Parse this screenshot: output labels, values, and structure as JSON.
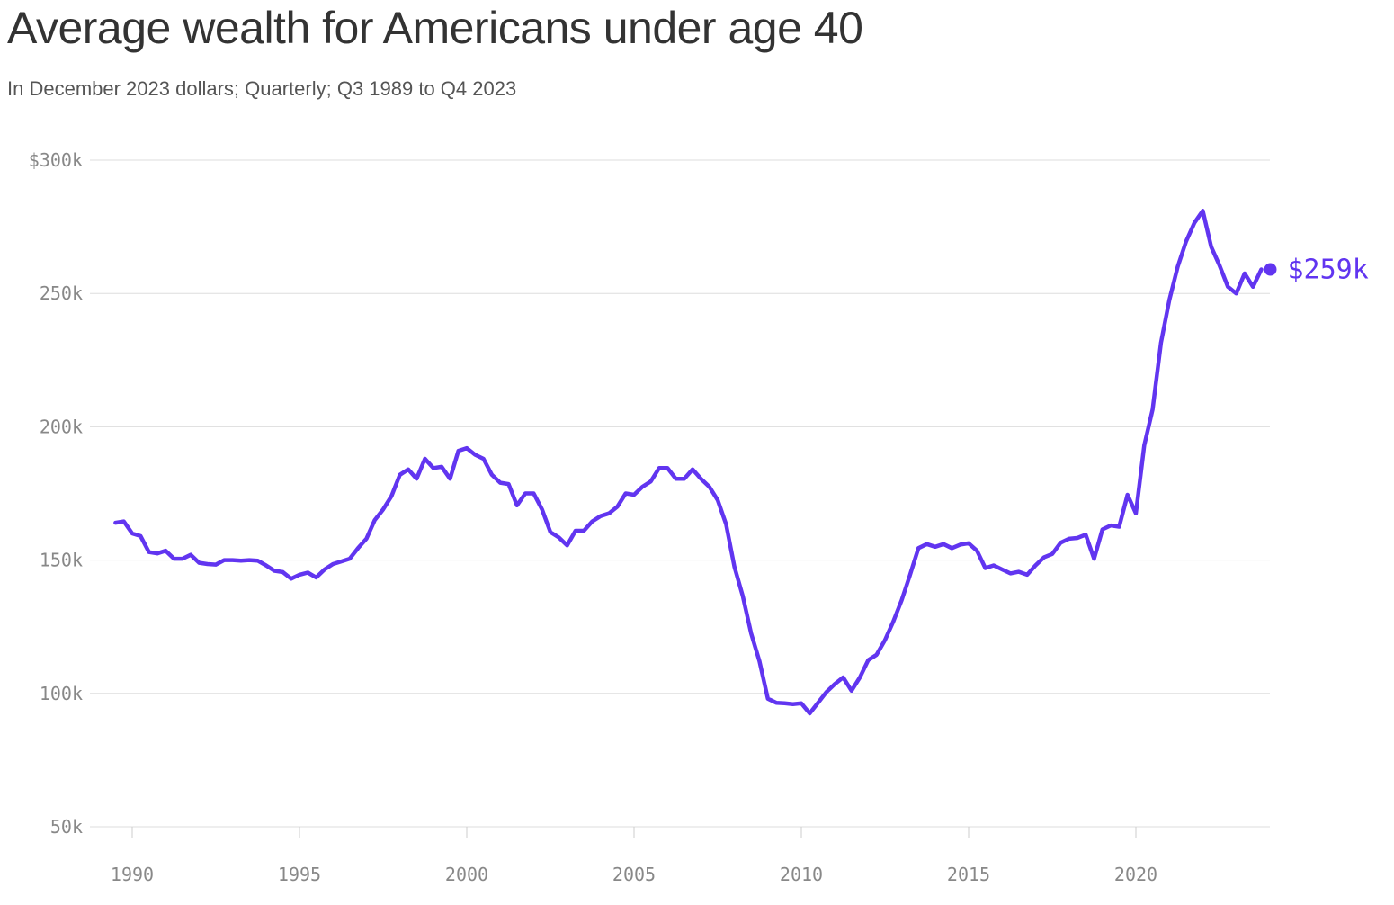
{
  "title": "Average wealth for Americans under age 40",
  "subtitle": "In December 2023 dollars; Quarterly; Q3 1989 to Q4 2023",
  "colors": {
    "line": "#6135f0",
    "grid": "#dddddd",
    "tick_text": "#888888"
  },
  "chart_data": {
    "type": "line",
    "title": "Average wealth for Americans under age 40",
    "subtitle": "In December 2023 dollars; Quarterly; Q3 1989 to Q4 2023",
    "xlabel": "",
    "ylabel": "",
    "x_ticks": [
      1990,
      1995,
      2000,
      2005,
      2010,
      2015,
      2020
    ],
    "y_ticks": [
      {
        "value": 50,
        "label": "50k"
      },
      {
        "value": 100,
        "label": "100k"
      },
      {
        "value": 150,
        "label": "150k"
      },
      {
        "value": 200,
        "label": "200k"
      },
      {
        "value": 250,
        "label": "250k"
      },
      {
        "value": 300,
        "label": "$300k"
      }
    ],
    "xlim": [
      1989.5,
      2023.75
    ],
    "ylim": [
      50,
      300
    ],
    "grid": true,
    "end_label": "$259k",
    "series": [
      {
        "values": [
          {
            "x": "Q3 1989",
            "y": 164
          },
          {
            "x": "Q4 1989",
            "y": 164.5
          },
          {
            "x": "Q1 1990",
            "y": 160
          },
          {
            "x": "Q2 1990",
            "y": 159
          },
          {
            "x": "Q3 1990",
            "y": 153
          },
          {
            "x": "Q4 1990",
            "y": 152.5
          },
          {
            "x": "Q1 1991",
            "y": 153.5
          },
          {
            "x": "Q2 1991",
            "y": 150.5
          },
          {
            "x": "Q3 1991",
            "y": 150.5
          },
          {
            "x": "Q4 1991",
            "y": 152
          },
          {
            "x": "Q1 1992",
            "y": 149
          },
          {
            "x": "Q2 1992",
            "y": 148.5
          },
          {
            "x": "Q3 1992",
            "y": 148.3
          },
          {
            "x": "Q4 1992",
            "y": 150
          },
          {
            "x": "Q1 1993",
            "y": 150
          },
          {
            "x": "Q2 1993",
            "y": 149.8
          },
          {
            "x": "Q3 1993",
            "y": 150
          },
          {
            "x": "Q4 1993",
            "y": 149.8
          },
          {
            "x": "Q1 1994",
            "y": 148
          },
          {
            "x": "Q2 1994",
            "y": 146
          },
          {
            "x": "Q3 1994",
            "y": 145.5
          },
          {
            "x": "Q4 1994",
            "y": 143
          },
          {
            "x": "Q1 1995",
            "y": 144.5
          },
          {
            "x": "Q2 1995",
            "y": 145.3
          },
          {
            "x": "Q3 1995",
            "y": 143.5
          },
          {
            "x": "Q4 1995",
            "y": 146.5
          },
          {
            "x": "Q1 1996",
            "y": 148.5
          },
          {
            "x": "Q2 1996",
            "y": 149.5
          },
          {
            "x": "Q3 1996",
            "y": 150.5
          },
          {
            "x": "Q4 1996",
            "y": 154.5
          },
          {
            "x": "Q1 1997",
            "y": 158
          },
          {
            "x": "Q2 1997",
            "y": 165
          },
          {
            "x": "Q3 1997",
            "y": 169
          },
          {
            "x": "Q4 1997",
            "y": 174
          },
          {
            "x": "Q1 1998",
            "y": 182
          },
          {
            "x": "Q2 1998",
            "y": 184
          },
          {
            "x": "Q3 1998",
            "y": 180.5
          },
          {
            "x": "Q4 1998",
            "y": 188
          },
          {
            "x": "Q1 1999",
            "y": 184.5
          },
          {
            "x": "Q2 1999",
            "y": 185
          },
          {
            "x": "Q3 1999",
            "y": 180.5
          },
          {
            "x": "Q4 1999",
            "y": 191
          },
          {
            "x": "Q1 2000",
            "y": 192
          },
          {
            "x": "Q2 2000",
            "y": 189.5
          },
          {
            "x": "Q3 2000",
            "y": 188
          },
          {
            "x": "Q4 2000",
            "y": 182
          },
          {
            "x": "Q1 2001",
            "y": 179
          },
          {
            "x": "Q2 2001",
            "y": 178.5
          },
          {
            "x": "Q3 2001",
            "y": 170.5
          },
          {
            "x": "Q4 2001",
            "y": 175
          },
          {
            "x": "Q1 2002",
            "y": 175
          },
          {
            "x": "Q2 2002",
            "y": 169
          },
          {
            "x": "Q3 2002",
            "y": 160.5
          },
          {
            "x": "Q4 2002",
            "y": 158.5
          },
          {
            "x": "Q1 2003",
            "y": 155.5
          },
          {
            "x": "Q2 2003",
            "y": 161
          },
          {
            "x": "Q3 2003",
            "y": 161
          },
          {
            "x": "Q4 2003",
            "y": 164.5
          },
          {
            "x": "Q1 2004",
            "y": 166.5
          },
          {
            "x": "Q2 2004",
            "y": 167.5
          },
          {
            "x": "Q3 2004",
            "y": 170
          },
          {
            "x": "Q4 2004",
            "y": 175
          },
          {
            "x": "Q1 2005",
            "y": 174.5
          },
          {
            "x": "Q2 2005",
            "y": 177.5
          },
          {
            "x": "Q3 2005",
            "y": 179.5
          },
          {
            "x": "Q4 2005",
            "y": 184.5
          },
          {
            "x": "Q1 2006",
            "y": 184.5
          },
          {
            "x": "Q2 2006",
            "y": 180.5
          },
          {
            "x": "Q3 2006",
            "y": 180.5
          },
          {
            "x": "Q4 2006",
            "y": 184
          },
          {
            "x": "Q1 2007",
            "y": 180.5
          },
          {
            "x": "Q2 2007",
            "y": 177.5
          },
          {
            "x": "Q3 2007",
            "y": 172.5
          },
          {
            "x": "Q4 2007",
            "y": 163.5
          },
          {
            "x": "Q1 2008",
            "y": 147.5
          },
          {
            "x": "Q2 2008",
            "y": 136.5
          },
          {
            "x": "Q3 2008",
            "y": 122.5
          },
          {
            "x": "Q4 2008",
            "y": 112
          },
          {
            "x": "Q1 2009",
            "y": 98
          },
          {
            "x": "Q2 2009",
            "y": 96.5
          },
          {
            "x": "Q3 2009",
            "y": 96.3
          },
          {
            "x": "Q4 2009",
            "y": 96
          },
          {
            "x": "Q1 2010",
            "y": 96.3
          },
          {
            "x": "Q2 2010",
            "y": 92.5
          },
          {
            "x": "Q3 2010",
            "y": 96.5
          },
          {
            "x": "Q4 2010",
            "y": 100.5
          },
          {
            "x": "Q1 2011",
            "y": 103.5
          },
          {
            "x": "Q2 2011",
            "y": 106
          },
          {
            "x": "Q3 2011",
            "y": 101
          },
          {
            "x": "Q4 2011",
            "y": 106
          },
          {
            "x": "Q1 2012",
            "y": 112.5
          },
          {
            "x": "Q2 2012",
            "y": 114.5
          },
          {
            "x": "Q3 2012",
            "y": 120
          },
          {
            "x": "Q4 2012",
            "y": 127
          },
          {
            "x": "Q1 2013",
            "y": 135
          },
          {
            "x": "Q2 2013",
            "y": 144.5
          },
          {
            "x": "Q3 2013",
            "y": 154.5
          },
          {
            "x": "Q4 2013",
            "y": 156
          },
          {
            "x": "Q1 2014",
            "y": 155
          },
          {
            "x": "Q2 2014",
            "y": 156
          },
          {
            "x": "Q3 2014",
            "y": 154.5
          },
          {
            "x": "Q4 2014",
            "y": 155.8
          },
          {
            "x": "Q1 2015",
            "y": 156.3
          },
          {
            "x": "Q2 2015",
            "y": 153.5
          },
          {
            "x": "Q3 2015",
            "y": 147
          },
          {
            "x": "Q4 2015",
            "y": 148
          },
          {
            "x": "Q1 2016",
            "y": 146.5
          },
          {
            "x": "Q2 2016",
            "y": 145
          },
          {
            "x": "Q3 2016",
            "y": 145.6
          },
          {
            "x": "Q4 2016",
            "y": 144.5
          },
          {
            "x": "Q1 2017",
            "y": 148
          },
          {
            "x": "Q2 2017",
            "y": 151
          },
          {
            "x": "Q3 2017",
            "y": 152.3
          },
          {
            "x": "Q4 2017",
            "y": 156.5
          },
          {
            "x": "Q1 2018",
            "y": 158
          },
          {
            "x": "Q2 2018",
            "y": 158.3
          },
          {
            "x": "Q3 2018",
            "y": 159.5
          },
          {
            "x": "Q4 2018",
            "y": 150.5
          },
          {
            "x": "Q1 2019",
            "y": 161.5
          },
          {
            "x": "Q2 2019",
            "y": 163
          },
          {
            "x": "Q3 2019",
            "y": 162.5
          },
          {
            "x": "Q4 2019",
            "y": 174.5
          },
          {
            "x": "Q1 2020",
            "y": 167.5
          },
          {
            "x": "Q2 2020",
            "y": 193
          },
          {
            "x": "Q3 2020",
            "y": 206.5
          },
          {
            "x": "Q4 2020",
            "y": 231.5
          },
          {
            "x": "Q1 2021",
            "y": 247.5
          },
          {
            "x": "Q2 2021",
            "y": 260
          },
          {
            "x": "Q3 2021",
            "y": 269.5
          },
          {
            "x": "Q4 2021",
            "y": 276.5
          },
          {
            "x": "Q1 2022",
            "y": 281
          },
          {
            "x": "Q2 2022",
            "y": 267.5
          },
          {
            "x": "Q3 2022",
            "y": 260.5
          },
          {
            "x": "Q4 2022",
            "y": 252.5
          },
          {
            "x": "Q1 2023",
            "y": 250
          },
          {
            "x": "Q2 2023",
            "y": 257.5
          },
          {
            "x": "Q3 2023",
            "y": 252.5
          },
          {
            "x": "Q4 2023",
            "y": 259
          }
        ]
      }
    ]
  }
}
